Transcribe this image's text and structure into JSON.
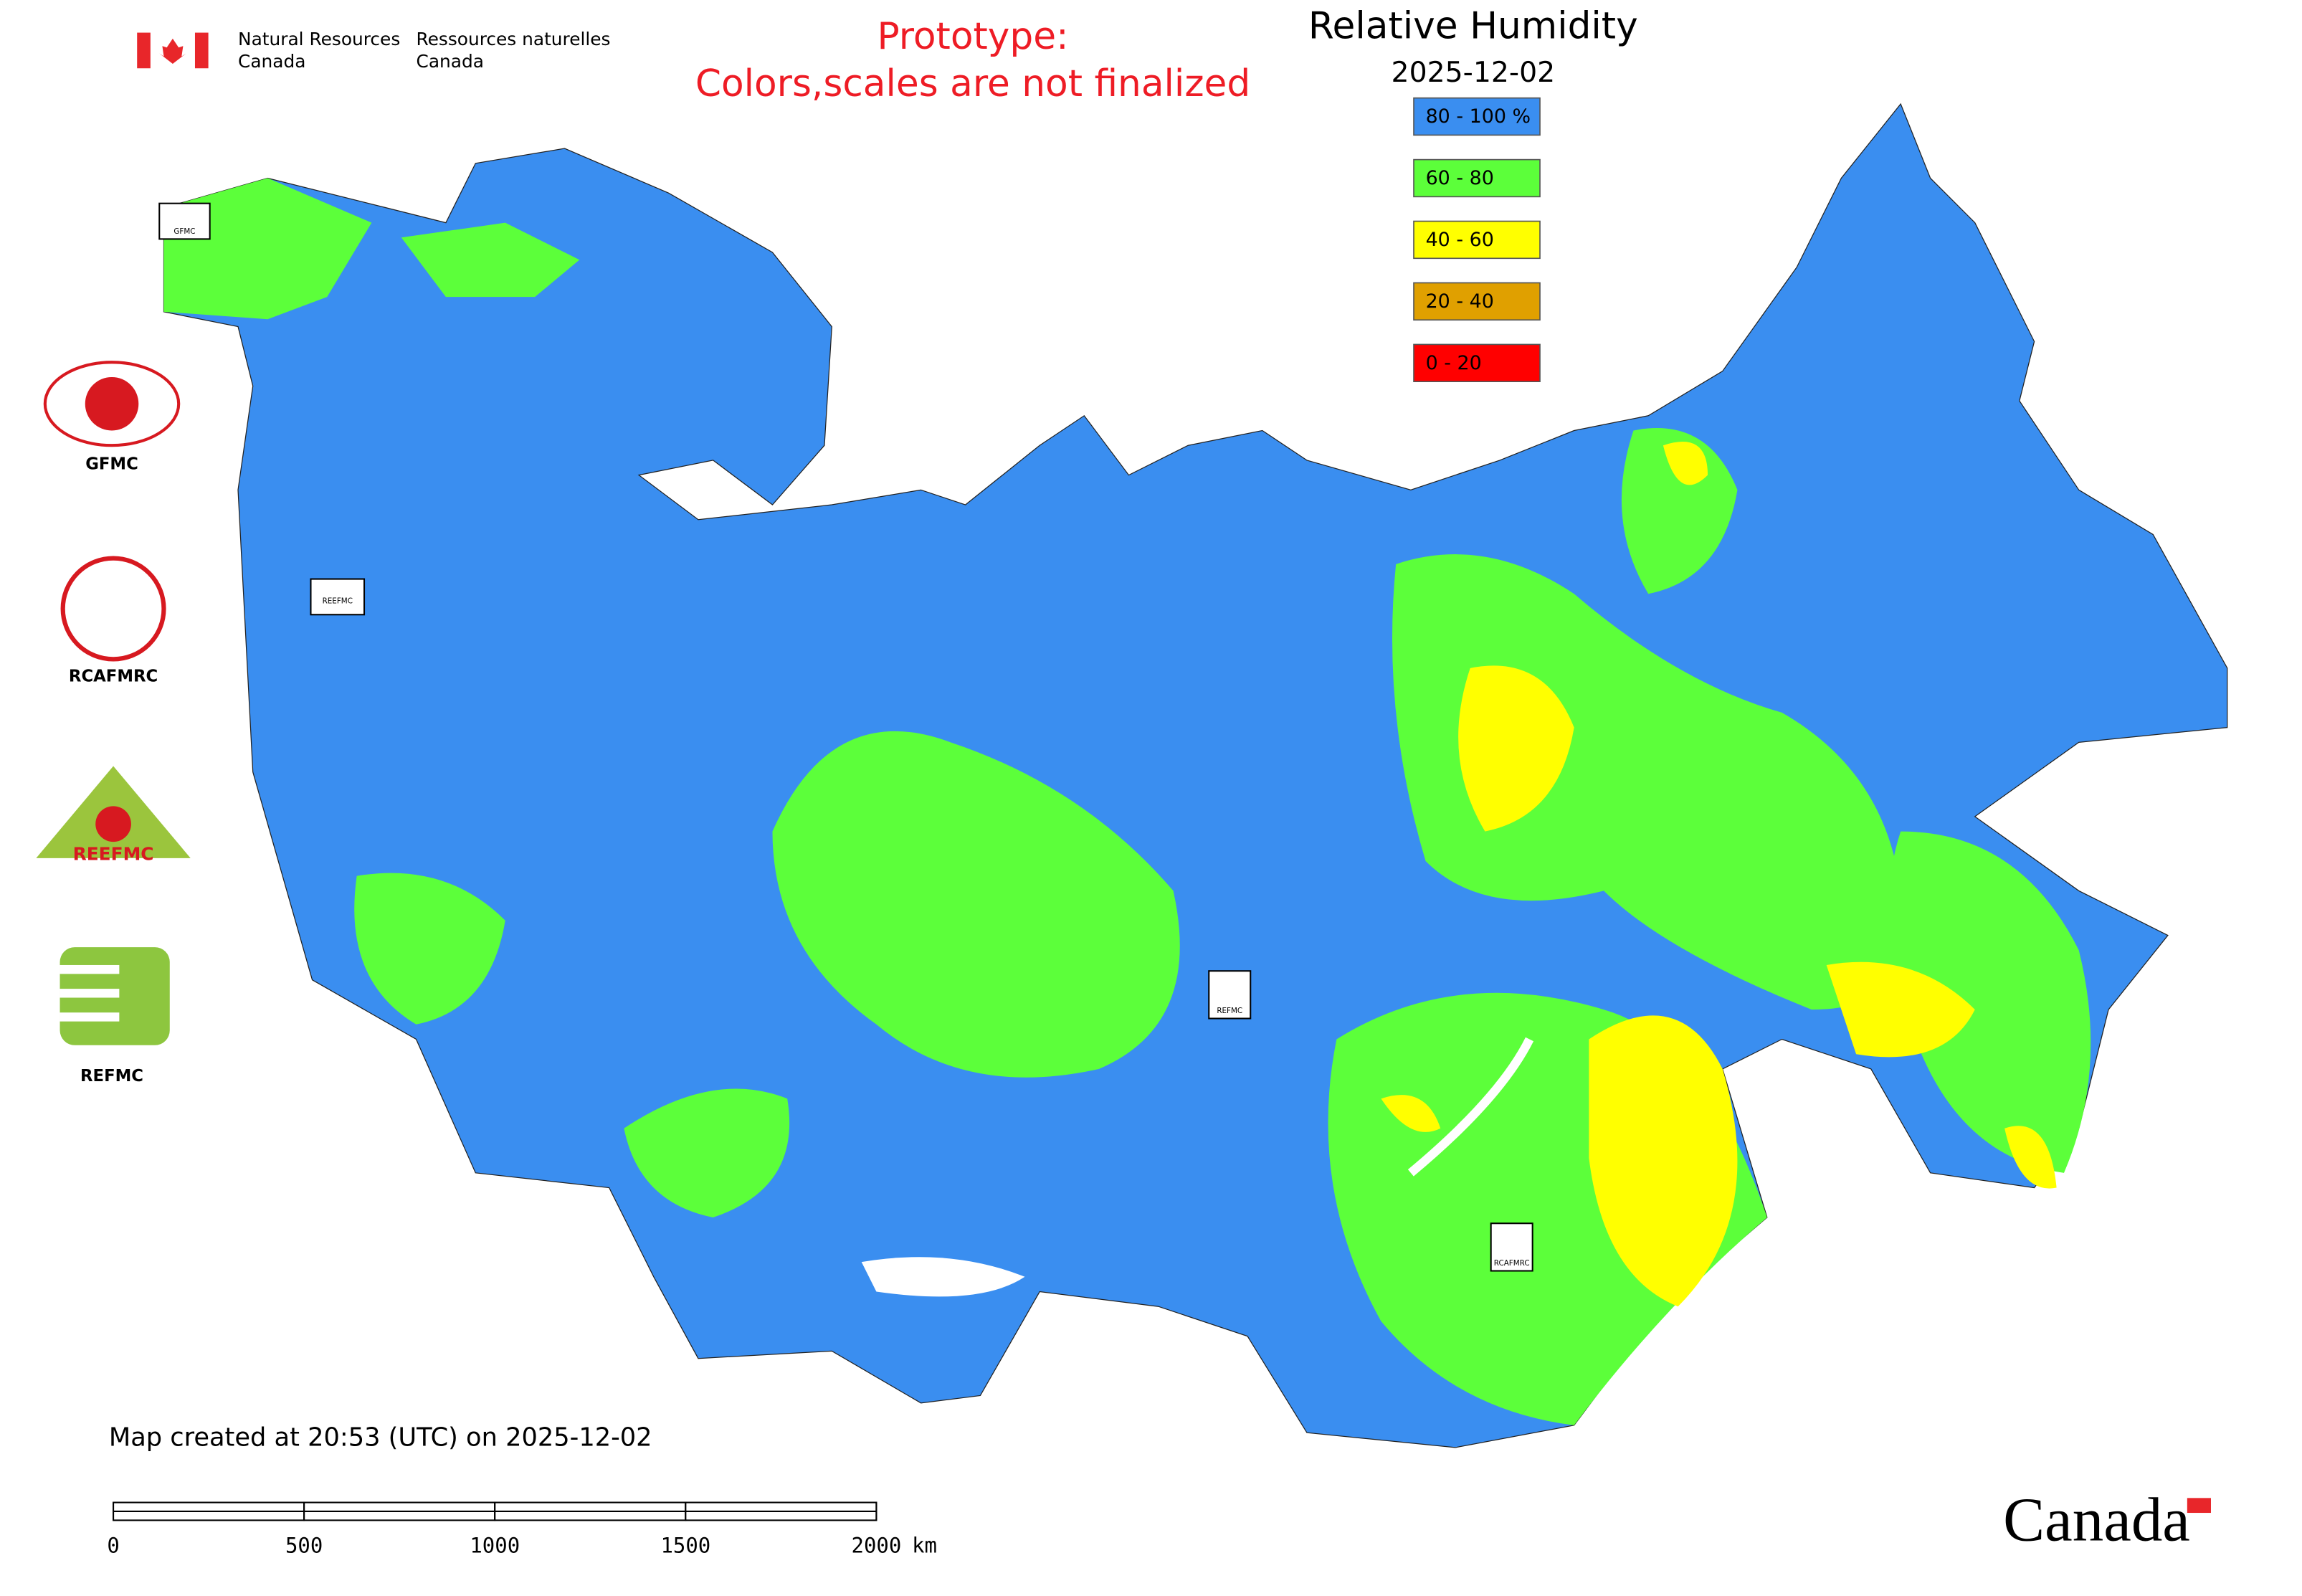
{
  "header": {
    "agency_en": [
      "Natural Resources",
      "Canada"
    ],
    "agency_fr": [
      "Ressources naturelles",
      "Canada"
    ],
    "notice": [
      "Prototype:",
      "Colors,scales are not finalized"
    ],
    "title": "Relative Humidity",
    "date": "2025-12-02"
  },
  "legend": {
    "items": [
      {
        "label": "80 - 100 %",
        "color": "#3a8ef0"
      },
      {
        "label": "60 - 80",
        "color": "#5cff3a"
      },
      {
        "label": "40 - 60",
        "color": "#ffff00"
      },
      {
        "label": "20 - 40",
        "color": "#e0a000"
      },
      {
        "label": "0 - 20",
        "color": "#ff0000"
      }
    ]
  },
  "logos": [
    "GFMC",
    "RCAFMRC",
    "REEFMC",
    "REFMC"
  ],
  "map_markers": [
    "GFMC",
    "REEFMC",
    "REFMC",
    "RCAFMRC"
  ],
  "footer": {
    "created": "Map created at 20:53 (UTC) on 2025-12-02",
    "wordmark": "Canada"
  },
  "scale_bar": {
    "ticks": [
      0,
      500,
      1000,
      1500,
      2000
    ],
    "unit": "km"
  }
}
